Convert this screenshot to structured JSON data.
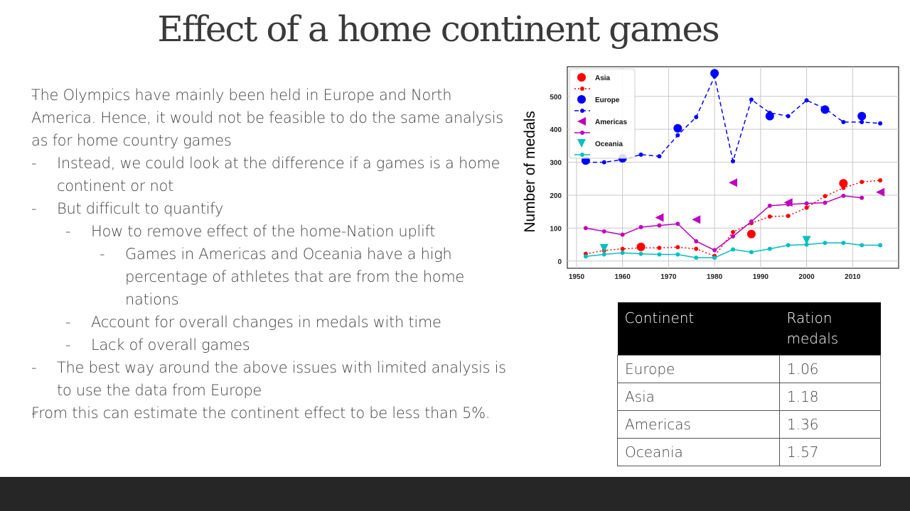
{
  "title": "Effect of a home continent games",
  "bullets": [
    {
      "level": 0,
      "marker": "-",
      "text": "The Olympics have mainly been held in Europe and North America. Hence, it would not be feasible to do the same analysis as for home country games"
    },
    {
      "level": 1,
      "marker": "-",
      "text": "Instead, we could look at the difference if a games is a home continent or not"
    },
    {
      "level": 1,
      "marker": "-",
      "text": "But difficult to quantify"
    },
    {
      "level": 2,
      "marker": "-",
      "text": "How to remove effect of the home-Nation uplift"
    },
    {
      "level": 3,
      "marker": "-",
      "text": "Games in Americas and Oceania have a high percentage of athletes that are from the home nations"
    },
    {
      "level": 2,
      "marker": "-",
      "text": "Account for overall changes in medals with time"
    },
    {
      "level": 2,
      "marker": "-",
      "text": "Lack of overall games"
    },
    {
      "level": 1,
      "marker": "-",
      "text": "The best way around the above issues with limited analysis is to use the data from Europe"
    },
    {
      "level": 0,
      "marker": "-",
      "text": "From this can estimate the continent effect to be less than 5%."
    }
  ],
  "chart_data": {
    "type": "line",
    "ylabel": "Number of medals",
    "xlabel": "",
    "xlim": [
      1948,
      2020
    ],
    "ylim": [
      -22,
      590
    ],
    "xticks": [
      1950,
      1960,
      1970,
      1980,
      1990,
      2000,
      2010
    ],
    "yticks": [
      0,
      100,
      200,
      300,
      400,
      500
    ],
    "grid": true,
    "legend_position": "upper-left",
    "series": [
      {
        "name": "Asia",
        "color": "#ff0000",
        "line_style": "dotted",
        "x": [
          1952,
          1956,
          1960,
          1964,
          1968,
          1972,
          1976,
          1980,
          1984,
          1988,
          1992,
          1996,
          2000,
          2004,
          2008,
          2012,
          2016
        ],
        "y": [
          22,
          32,
          37,
          40,
          40,
          42,
          37,
          15,
          88,
          115,
          135,
          137,
          162,
          197,
          222,
          240,
          245
        ],
        "home_x": [
          1964,
          1988,
          2008
        ],
        "home_y": [
          43,
          82,
          236
        ]
      },
      {
        "name": "Europe",
        "color": "#0000ff",
        "line_style": "dashed",
        "x": [
          1952,
          1956,
          1960,
          1964,
          1968,
          1972,
          1976,
          1980,
          1984,
          1988,
          1992,
          1996,
          2000,
          2004,
          2008,
          2012,
          2016
        ],
        "y": [
          300,
          300,
          308,
          323,
          318,
          382,
          437,
          560,
          303,
          490,
          450,
          440,
          488,
          463,
          422,
          422,
          418
        ],
        "home_x": [
          1952,
          1960,
          1972,
          1980,
          1992,
          2004,
          2012
        ],
        "home_y": [
          305,
          312,
          403,
          570,
          440,
          460,
          440
        ]
      },
      {
        "name": "Americas",
        "color": "#bf00bf",
        "line_style": "solid",
        "x": [
          1952,
          1956,
          1960,
          1964,
          1968,
          1972,
          1976,
          1980,
          1984,
          1988,
          1992,
          1996,
          2000,
          2004,
          2008,
          2012
        ],
        "y": [
          100,
          90,
          80,
          103,
          108,
          113,
          60,
          33,
          75,
          120,
          168,
          172,
          175,
          177,
          198,
          192
        ],
        "home_x": [
          1968,
          1976,
          1984,
          1996,
          2016
        ],
        "home_y": [
          132,
          126,
          238,
          178,
          209
        ]
      },
      {
        "name": "Oceania",
        "color": "#00bfbf",
        "line_style": "solid",
        "x": [
          1952,
          1956,
          1960,
          1964,
          1968,
          1972,
          1976,
          1980,
          1984,
          1988,
          1992,
          1996,
          2000,
          2004,
          2008,
          2012,
          2016
        ],
        "y": [
          14,
          20,
          25,
          22,
          20,
          20,
          10,
          10,
          35,
          27,
          37,
          48,
          50,
          55,
          55,
          48,
          48
        ],
        "home_x": [
          1956,
          2000
        ],
        "home_y": [
          39,
          63
        ]
      }
    ]
  },
  "table": {
    "headers": [
      "Continent",
      "Ration\nmedals"
    ],
    "rows": [
      [
        "Europe",
        "1.06"
      ],
      [
        "Asia",
        "1.18"
      ],
      [
        "Americas",
        "1.36"
      ],
      [
        "Oceania",
        "1.57"
      ]
    ]
  },
  "colors": {
    "footer": "#262626",
    "table_header_bg": "#000000"
  }
}
